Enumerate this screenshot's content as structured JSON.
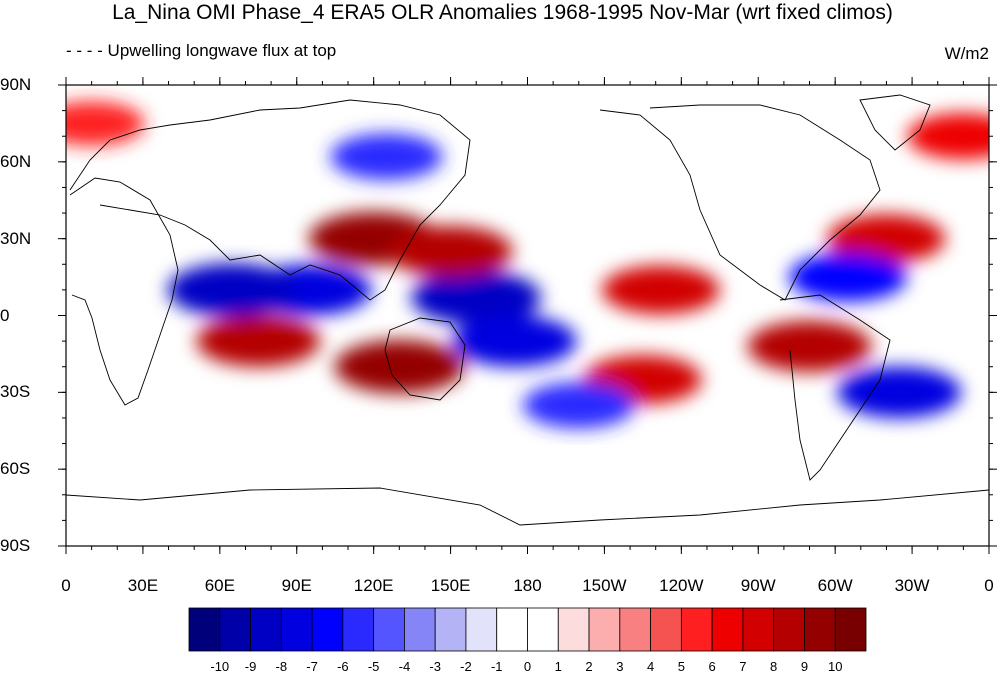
{
  "title": "La_Nina OMI Phase_4 ERA5 OLR Anomalies 1968-1995 Nov-Mar (wrt fixed climos)",
  "subtitle": "- - - - Upwelling longwave flux at top",
  "units": "W/m2",
  "map": {
    "projection": "cylindrical-equidistant",
    "lon_range": [
      0,
      360
    ],
    "lat_range": [
      -90,
      90
    ],
    "lat_labels": [
      "90N",
      "60N",
      "30N",
      "0",
      "30S",
      "60S",
      "90S"
    ],
    "lon_labels": [
      "0",
      "30E",
      "60E",
      "90E",
      "120E",
      "150E",
      "180",
      "150W",
      "120W",
      "90W",
      "60W",
      "30W",
      "0"
    ]
  },
  "colorbar": {
    "labels": [
      "-10",
      "-9",
      "-8",
      "-7",
      "-6",
      "-5",
      "-4",
      "-3",
      "-2",
      "-1",
      "0",
      "1",
      "2",
      "3",
      "4",
      "5",
      "6",
      "7",
      "8",
      "9",
      "10"
    ],
    "colors": [
      "#00007a",
      "#0000a8",
      "#0000c4",
      "#0000e0",
      "#0000ff",
      "#2a2aff",
      "#5555ff",
      "#8585f7",
      "#b3b3f5",
      "#e2e2fb",
      "#ffffff",
      "#ffffff",
      "#fcdcdc",
      "#fcaeae",
      "#f98080",
      "#f55252",
      "#fe2020",
      "#ee0000",
      "#d20000",
      "#b40000",
      "#940000",
      "#780000"
    ]
  },
  "features": [
    {
      "lon": 125,
      "lat": 62,
      "value": -6
    },
    {
      "lon": 95,
      "lat": 10,
      "value": -8
    },
    {
      "lon": 65,
      "lat": 10,
      "value": -9
    },
    {
      "lon": 160,
      "lat": 7,
      "value": -9
    },
    {
      "lon": 175,
      "lat": -10,
      "value": -8
    },
    {
      "lon": 120,
      "lat": 30,
      "value": 9
    },
    {
      "lon": 150,
      "lat": 25,
      "value": 8
    },
    {
      "lon": 130,
      "lat": -20,
      "value": 9
    },
    {
      "lon": 75,
      "lat": -10,
      "value": 8
    },
    {
      "lon": 225,
      "lat": -25,
      "value": 7
    },
    {
      "lon": 232,
      "lat": 10,
      "value": 7
    },
    {
      "lon": 290,
      "lat": -12,
      "value": 8
    },
    {
      "lon": 320,
      "lat": 30,
      "value": 7
    },
    {
      "lon": 305,
      "lat": 15,
      "value": -7
    },
    {
      "lon": 325,
      "lat": -30,
      "value": -8
    },
    {
      "lon": 200,
      "lat": -35,
      "value": -6
    },
    {
      "lon": 10,
      "lat": 75,
      "value": 5
    },
    {
      "lon": 350,
      "lat": 70,
      "value": 6
    }
  ]
}
